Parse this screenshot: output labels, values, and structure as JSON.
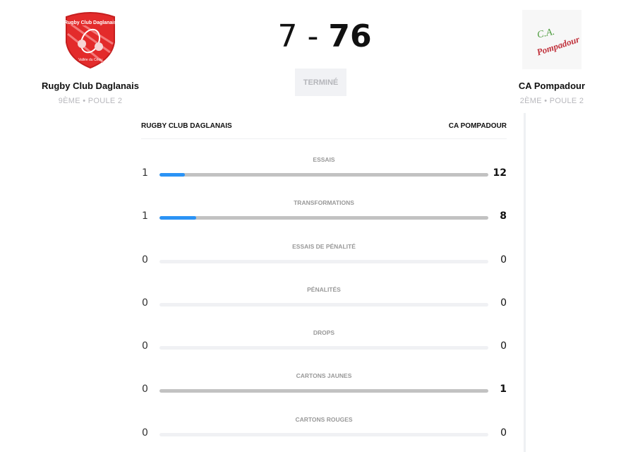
{
  "home": {
    "name": "Rugby Club Daglanais",
    "rank": "9ÈME • POULE 2",
    "score": "7",
    "logo_text": "Rugby Club Daglanais",
    "logo_color": "#e32b2b"
  },
  "away": {
    "name": "CA Pompadour",
    "rank": "2ÈME • POULE 2",
    "score": "76",
    "logo_text": "C.A. Pompadour"
  },
  "score_separator": "-",
  "status": "TERMINÉ",
  "stats_header": {
    "home": "RUGBY CLUB DAGLANAIS",
    "away": "CA POMPADOUR"
  },
  "accent_color": "#2b93f5",
  "stats": [
    {
      "label": "ESSAIS",
      "home": "1",
      "away": "12"
    },
    {
      "label": "TRANSFORMATIONS",
      "home": "1",
      "away": "8"
    },
    {
      "label": "ESSAIS DE PÉNALITÉ",
      "home": "0",
      "away": "0"
    },
    {
      "label": "PÉNALITÉS",
      "home": "0",
      "away": "0"
    },
    {
      "label": "DROPS",
      "home": "0",
      "away": "0"
    },
    {
      "label": "CARTONS JAUNES",
      "home": "0",
      "away": "1"
    },
    {
      "label": "CARTONS ROUGES",
      "home": "0",
      "away": "0"
    }
  ]
}
